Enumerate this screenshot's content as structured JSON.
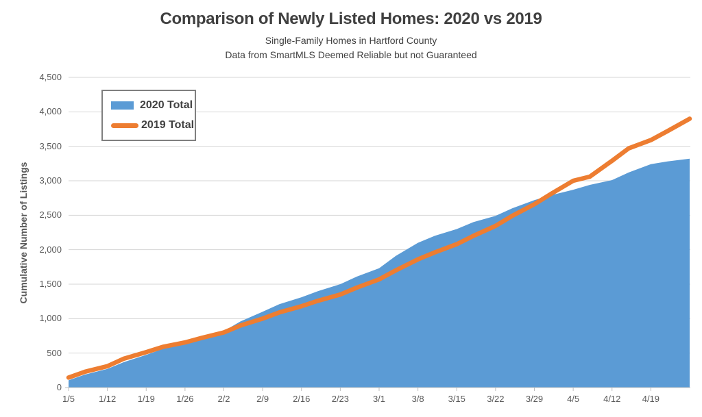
{
  "header": {
    "title": "Comparison of Newly Listed Homes: 2020 vs 2019",
    "subtitle1": "Single-Family Homes in Hartford County",
    "subtitle2": "Data from SmartMLS Deemed Reliable but not Guaranteed"
  },
  "chart_data": {
    "type": "area",
    "title": "Comparison of Newly Listed Homes: 2020 vs 2019",
    "subtitle": [
      "Single-Family Homes in Hartford County",
      "Data from SmartMLS Deemed Reliable but not Guaranteed"
    ],
    "xlabel": "",
    "ylabel": "Cumulative Number of Listings",
    "ylim": [
      0,
      4500
    ],
    "y_tick_values": [
      0,
      500,
      1000,
      1500,
      2000,
      2500,
      3000,
      3500,
      4000,
      4500
    ],
    "y_tick_labels": [
      "0",
      "500",
      "1,000",
      "1,500",
      "2,000",
      "2,500",
      "3,000",
      "3,500",
      "4,000",
      "4,500"
    ],
    "x_domain_days": [
      0,
      112
    ],
    "x_tick_days": [
      0,
      7,
      14,
      21,
      28,
      35,
      42,
      49,
      56,
      63,
      70,
      77,
      84,
      91,
      98,
      105
    ],
    "x_tick_labels": [
      "1/5",
      "1/12",
      "1/19",
      "1/26",
      "2/2",
      "2/9",
      "2/16",
      "2/23",
      "3/1",
      "3/8",
      "3/15",
      "3/22",
      "3/29",
      "4/5",
      "4/12",
      "4/19"
    ],
    "grid": "horizontal",
    "legend_position": "inside-top-left",
    "x_days": [
      0,
      3,
      7,
      10,
      14,
      17,
      21,
      24,
      28,
      31,
      35,
      38,
      42,
      45,
      49,
      52,
      56,
      59,
      63,
      66,
      70,
      73,
      77,
      80,
      84,
      87,
      91,
      94,
      98,
      101,
      105,
      108,
      112
    ],
    "series": [
      {
        "name": "2020 Total",
        "type": "area",
        "color": "#5B9BD5",
        "values": [
          105,
          190,
          270,
          370,
          475,
          560,
          625,
          710,
          820,
          960,
          1100,
          1210,
          1310,
          1400,
          1500,
          1610,
          1730,
          1910,
          2100,
          2200,
          2300,
          2400,
          2490,
          2600,
          2720,
          2790,
          2870,
          2940,
          3010,
          3120,
          3240,
          3280,
          3320
        ]
      },
      {
        "name": "2019 Total",
        "type": "line",
        "color": "#ED7D31",
        "values": [
          145,
          230,
          310,
          420,
          515,
          590,
          655,
          720,
          800,
          900,
          1000,
          1090,
          1180,
          1260,
          1350,
          1450,
          1570,
          1700,
          1860,
          1960,
          2080,
          2200,
          2345,
          2490,
          2660,
          2810,
          3000,
          3060,
          3290,
          3470,
          3590,
          3720,
          3900
        ]
      }
    ],
    "colors": {
      "grid": "#D6D6D6",
      "axis": "#BFBFBF",
      "tick_label": "#595959",
      "text": "#404040"
    }
  }
}
